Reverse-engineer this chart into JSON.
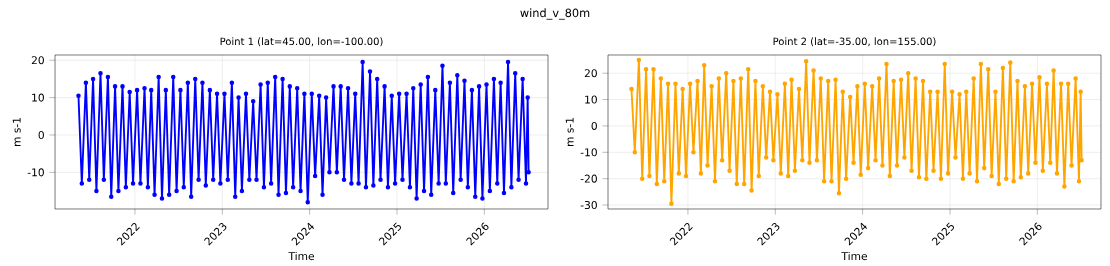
{
  "chart_data": [
    {
      "type": "line",
      "title": "Point 1 (lat=45.00, lon=-100.00)",
      "xlabel": "Time",
      "ylabel": "m s-1",
      "annotations": [
        "wind_v_80m"
      ],
      "color": "#0000ff",
      "marker": "circle",
      "line_style": "solid",
      "grid": true,
      "xlim": [
        "2021-02-01",
        "2026-09-24"
      ],
      "xticks": [
        "2022",
        "2023",
        "2024",
        "2025",
        "2026"
      ],
      "ylim": [
        -19.8,
        21.4
      ],
      "yticks": [
        -10,
        0,
        10,
        20
      ],
      "x": [
        "2021-05-10",
        "2021-05-24",
        "2021-06-10",
        "2021-06-24",
        "2021-07-10",
        "2021-07-24",
        "2021-08-10",
        "2021-08-24",
        "2021-09-10",
        "2021-09-24",
        "2021-10-10",
        "2021-10-24",
        "2021-11-10",
        "2021-11-24",
        "2021-12-10",
        "2021-12-24",
        "2022-01-10",
        "2022-01-24",
        "2022-02-10",
        "2022-02-24",
        "2022-03-10",
        "2022-03-24",
        "2022-04-10",
        "2022-04-24",
        "2022-05-10",
        "2022-05-24",
        "2022-06-10",
        "2022-06-24",
        "2022-07-10",
        "2022-07-24",
        "2022-08-10",
        "2022-08-24",
        "2022-09-10",
        "2022-09-24",
        "2022-10-10",
        "2022-10-24",
        "2022-11-10",
        "2022-11-24",
        "2022-12-10",
        "2022-12-24",
        "2023-01-10",
        "2023-01-24",
        "2023-02-10",
        "2023-02-24",
        "2023-03-10",
        "2023-03-24",
        "2023-04-10",
        "2023-04-24",
        "2023-05-10",
        "2023-05-24",
        "2023-06-10",
        "2023-06-24",
        "2023-07-10",
        "2023-07-24",
        "2023-08-10",
        "2023-08-24",
        "2023-09-10",
        "2023-09-24",
        "2023-10-10",
        "2023-10-24",
        "2023-11-10",
        "2023-11-24",
        "2023-12-10",
        "2023-12-24",
        "2024-01-10",
        "2024-01-24",
        "2024-02-10",
        "2024-02-24",
        "2024-03-10",
        "2024-03-24",
        "2024-04-10",
        "2024-04-24",
        "2024-05-10",
        "2024-05-24",
        "2024-06-10",
        "2024-06-24",
        "2024-07-10",
        "2024-07-24",
        "2024-08-10",
        "2024-08-24",
        "2024-09-10",
        "2024-09-24",
        "2024-10-10",
        "2024-10-24",
        "2024-11-10",
        "2024-11-24",
        "2024-12-10",
        "2024-12-24",
        "2025-01-10",
        "2025-01-24",
        "2025-02-10",
        "2025-02-24",
        "2025-03-10",
        "2025-03-24",
        "2025-04-10",
        "2025-04-24",
        "2025-05-10",
        "2025-05-24",
        "2025-06-10",
        "2025-06-24",
        "2025-07-10",
        "2025-07-24",
        "2025-08-10",
        "2025-08-24",
        "2025-09-10",
        "2025-09-24",
        "2025-10-10",
        "2025-10-24",
        "2025-11-10",
        "2025-11-24",
        "2025-12-10",
        "2025-12-24",
        "2026-01-10",
        "2026-01-24",
        "2026-02-10",
        "2026-02-24",
        "2026-03-10",
        "2026-03-24",
        "2026-04-10",
        "2026-04-24",
        "2026-05-10",
        "2026-05-24",
        "2026-06-10",
        "2026-06-24",
        "2026-07-01",
        "2026-07-05"
      ],
      "values": [
        10.5,
        -13,
        14,
        -12,
        15,
        -15,
        16.5,
        -12,
        15.5,
        -16.5,
        13,
        -15,
        13,
        -14,
        11.5,
        -13,
        12,
        -13,
        12.5,
        -14,
        12,
        -16,
        15.5,
        -17,
        12,
        -16,
        15.5,
        -15,
        12,
        -14,
        14,
        -16.5,
        15,
        -12,
        14,
        -13.5,
        12,
        -12,
        11,
        -13,
        11,
        -12,
        14,
        -16.5,
        10,
        -15,
        11,
        -12,
        9,
        -12,
        13.5,
        -14,
        14,
        -13,
        15.5,
        -16,
        15,
        -15.5,
        13,
        -14,
        12.5,
        -15,
        11,
        -18,
        11,
        -11,
        10.5,
        -16,
        10,
        -10,
        13,
        -10,
        13,
        -12,
        12.5,
        -13,
        11,
        -13,
        19.5,
        -14,
        17,
        -13.5,
        15,
        -12,
        13,
        -14,
        10.5,
        -13,
        11,
        -12,
        11,
        -14,
        12.5,
        -17,
        13.5,
        -15,
        15.5,
        -16,
        12,
        -13,
        18.5,
        -13,
        14,
        -15.5,
        16,
        -12,
        14.5,
        -14,
        12,
        -16.5,
        13,
        -17,
        13.5,
        -15,
        15,
        -13,
        14,
        -15.5,
        19.5,
        -14,
        16.5,
        -12,
        15,
        -13,
        10,
        -10
      ]
    },
    {
      "type": "line",
      "title": "Point 2 (lat=-35.00, lon=155.00)",
      "xlabel": "Time",
      "ylabel": "m s-1",
      "color": "#ffa500",
      "marker": "circle",
      "line_style": "solid",
      "grid": true,
      "xlim": [
        "2021-02-01",
        "2026-09-24"
      ],
      "xticks": [
        "2022",
        "2023",
        "2024",
        "2025",
        "2026"
      ],
      "ylim": [
        -31.5,
        26.9
      ],
      "yticks": [
        -30,
        -20,
        -10,
        0,
        10,
        20
      ],
      "x": [
        "2021-05-10",
        "2021-05-24",
        "2021-06-10",
        "2021-06-24",
        "2021-07-10",
        "2021-07-24",
        "2021-08-10",
        "2021-08-24",
        "2021-09-10",
        "2021-09-24",
        "2021-10-10",
        "2021-10-24",
        "2021-11-10",
        "2021-11-24",
        "2021-12-10",
        "2021-12-24",
        "2022-01-10",
        "2022-01-24",
        "2022-02-10",
        "2022-02-24",
        "2022-03-10",
        "2022-03-24",
        "2022-04-10",
        "2022-04-24",
        "2022-05-10",
        "2022-05-24",
        "2022-06-10",
        "2022-06-24",
        "2022-07-10",
        "2022-07-24",
        "2022-08-10",
        "2022-08-24",
        "2022-09-10",
        "2022-09-24",
        "2022-10-10",
        "2022-10-24",
        "2022-11-10",
        "2022-11-24",
        "2022-12-10",
        "2022-12-24",
        "2023-01-10",
        "2023-01-24",
        "2023-02-10",
        "2023-02-24",
        "2023-03-10",
        "2023-03-24",
        "2023-04-10",
        "2023-04-24",
        "2023-05-10",
        "2023-05-24",
        "2023-06-10",
        "2023-06-24",
        "2023-07-10",
        "2023-07-24",
        "2023-08-10",
        "2023-08-24",
        "2023-09-10",
        "2023-09-24",
        "2023-10-10",
        "2023-10-24",
        "2023-11-10",
        "2023-11-24",
        "2023-12-10",
        "2023-12-24",
        "2024-01-10",
        "2024-01-24",
        "2024-02-10",
        "2024-02-24",
        "2024-03-10",
        "2024-03-24",
        "2024-04-10",
        "2024-04-24",
        "2024-05-10",
        "2024-05-24",
        "2024-06-10",
        "2024-06-24",
        "2024-07-10",
        "2024-07-24",
        "2024-08-10",
        "2024-08-24",
        "2024-09-10",
        "2024-09-24",
        "2024-10-10",
        "2024-10-24",
        "2024-11-10",
        "2024-11-24",
        "2024-12-10",
        "2024-12-24",
        "2025-01-10",
        "2025-01-24",
        "2025-02-10",
        "2025-02-24",
        "2025-03-10",
        "2025-03-24",
        "2025-04-10",
        "2025-04-24",
        "2025-05-10",
        "2025-05-24",
        "2025-06-10",
        "2025-06-24",
        "2025-07-10",
        "2025-07-24",
        "2025-08-10",
        "2025-08-24",
        "2025-09-10",
        "2025-09-24",
        "2025-10-10",
        "2025-10-24",
        "2025-11-10",
        "2025-11-24",
        "2025-12-10",
        "2025-12-24",
        "2026-01-10",
        "2026-01-24",
        "2026-02-10",
        "2026-02-24",
        "2026-03-10",
        "2026-03-24",
        "2026-04-10",
        "2026-04-24",
        "2026-05-10",
        "2026-05-24",
        "2026-06-10",
        "2026-06-24",
        "2026-07-01",
        "2026-07-05"
      ],
      "values": [
        14,
        -10,
        25,
        -20,
        21.5,
        -19,
        21.5,
        -22,
        18,
        -21,
        16,
        -29.5,
        16,
        -18,
        14,
        -19,
        16,
        -10,
        17,
        -18,
        23,
        -15,
        15,
        -21,
        18,
        -13,
        20,
        -17,
        17,
        -22,
        18,
        -22,
        21.5,
        -24.5,
        17,
        -19,
        15,
        -12,
        13,
        -13,
        12,
        -18,
        16,
        -19,
        17.5,
        -17,
        14,
        -13,
        24.5,
        -14,
        21,
        -13,
        18,
        -21,
        17,
        -21,
        17.5,
        -25.5,
        13,
        -20,
        11,
        -14,
        15,
        -18.5,
        16,
        -16,
        15,
        -13,
        18,
        -15,
        23.5,
        -19,
        17,
        -15,
        17.5,
        -12,
        20,
        -17,
        18,
        -19.5,
        17,
        -20,
        13,
        -17,
        13,
        -20,
        23.5,
        -18,
        13,
        -12,
        12,
        -20,
        13,
        -18,
        18,
        -21,
        23.5,
        -16,
        21.5,
        -19,
        13,
        -22,
        22,
        -20,
        24,
        -21,
        17,
        -19.5,
        15,
        -18,
        16,
        -14,
        18.5,
        -17,
        16,
        -14,
        21,
        -18,
        16,
        -23,
        16,
        -15,
        18,
        -21,
        13,
        -13
      ]
    }
  ]
}
